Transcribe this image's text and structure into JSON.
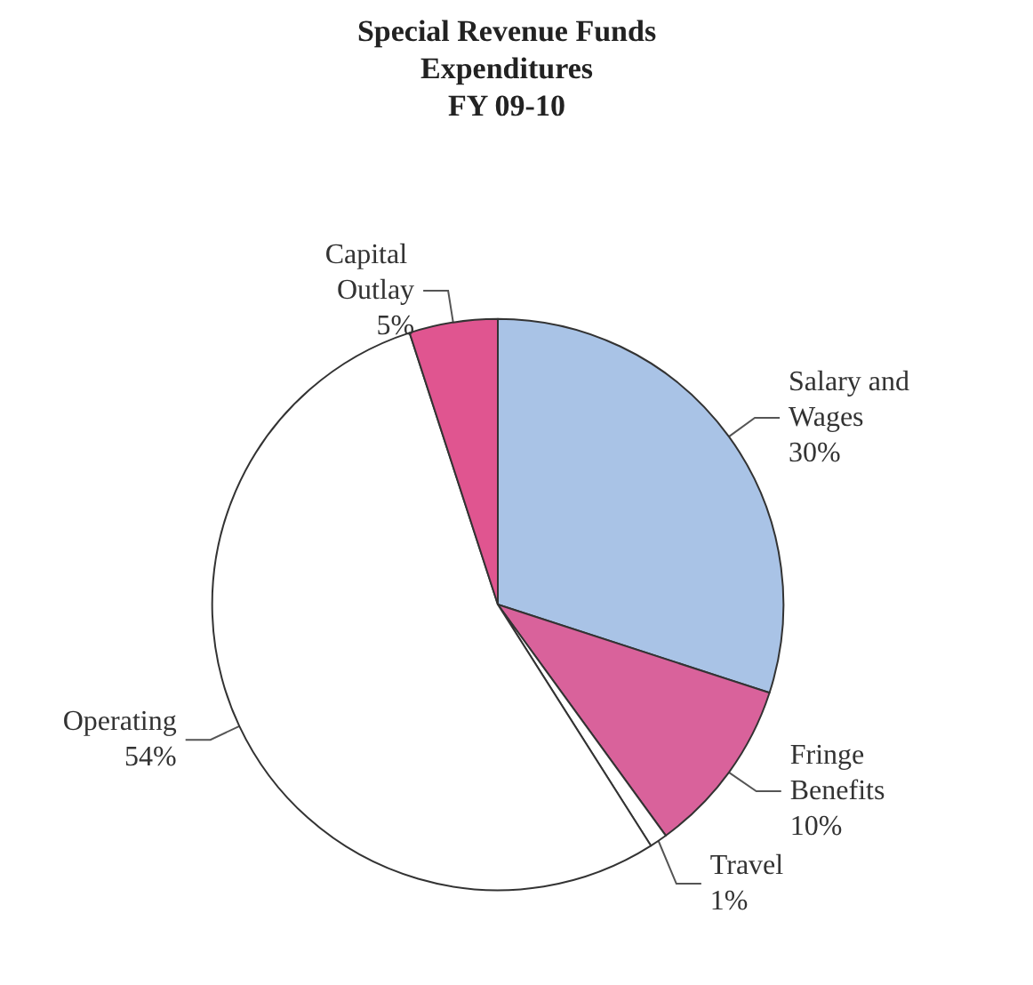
{
  "chart_data": {
    "type": "pie",
    "title": "Special Revenue Funds\nExpenditures\nFY 09-10",
    "categories": [
      "Salary and Wages",
      "Fringe Benefits",
      "Travel",
      "Operating",
      "Capital Outlay"
    ],
    "values": [
      30,
      10,
      1,
      54,
      5
    ],
    "value_labels": [
      "30%",
      "10%",
      "1%",
      "54%",
      "5%"
    ],
    "colors": [
      "#a9c3e6",
      "#d9629b",
      "#ffffff",
      "#ffffff",
      "#e05590"
    ]
  }
}
